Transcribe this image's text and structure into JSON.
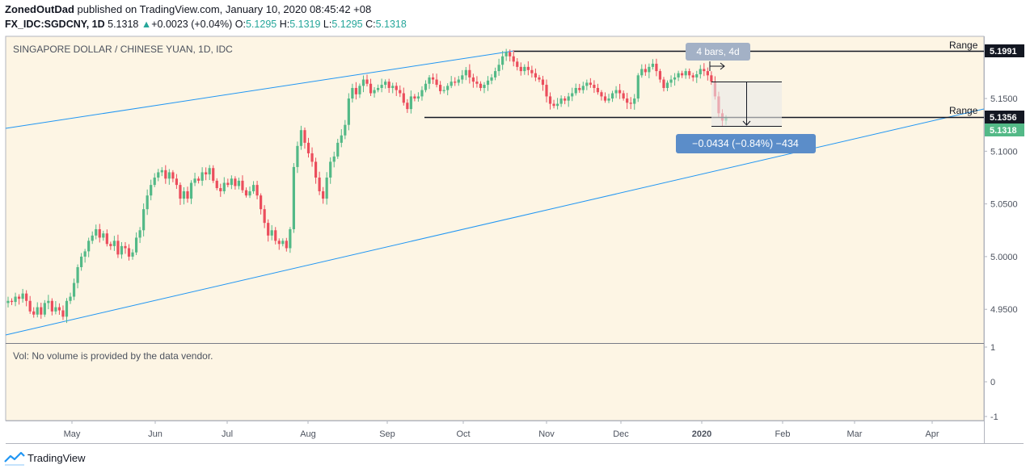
{
  "header": {
    "author": "ZonedOutDad",
    "published": " published on TradingView.com, January 10, 2020 08:45:42 +08",
    "symbol": "FX_IDC:SGDCNY, 1D",
    "last": "5.1318",
    "change_arrow": "▲",
    "change": "+0.0023 (+0.04%)",
    "o_label": "O:",
    "o": "5.1295",
    "h_label": "H:",
    "h": "5.1319",
    "l_label": "L:",
    "l": "5.1295",
    "c_label": "C:",
    "c": "5.1318"
  },
  "panel": {
    "title": "SINGAPORE DOLLAR / CHINESE YUAN, 1D, IDC",
    "volume_note": "Vol: No volume is provided by the data vendor."
  },
  "annotations": {
    "range_label_top": "Range",
    "range_label_bottom": "Range",
    "bars_box": "4 bars, 4d",
    "measure_box": "−0.0434 (−0.84%) −434"
  },
  "price_tags": {
    "range_top": "5.1991",
    "range_bottom": "5.1356",
    "last": "5.1318"
  },
  "footer": {
    "brand": "TradingView"
  },
  "colors": {
    "background": "#fdf5e4",
    "up": "#53b987",
    "down": "#eb4d5c",
    "trendline": "#2196f3",
    "axis_border": "#b2b5be",
    "tag_dark": "#131722",
    "tag_green": "#53b987",
    "measure_blue": "#5b8dc9",
    "bars_gray": "#a3b1c6"
  },
  "chart_data": {
    "type": "candlestick",
    "title": "SINGAPORE DOLLAR / CHINESE YUAN, 1D, IDC",
    "x_ticks": [
      "May",
      "Jun",
      "Jul",
      "Aug",
      "Sep",
      "Oct",
      "Nov",
      "Dec",
      "2020",
      "Feb",
      "Mar",
      "Apr"
    ],
    "y_ticks": [
      "4.9500",
      "5.0000",
      "5.0500",
      "5.1000",
      "5.1500"
    ],
    "volume_ticks": [
      "1",
      "0",
      "-1"
    ],
    "ylim": [
      4.918,
      5.209
    ],
    "closes": [
      4.958,
      4.957,
      4.962,
      4.96,
      4.965,
      4.958,
      4.948,
      4.945,
      4.952,
      4.945,
      4.956,
      4.958,
      4.948,
      4.952,
      4.949,
      4.943,
      4.958,
      4.962,
      4.975,
      4.99,
      5.0,
      5.005,
      5.015,
      5.02,
      5.026,
      5.018,
      5.022,
      5.012,
      5.01,
      5.015,
      5.002,
      5.01,
      5.008,
      5.0,
      5.004,
      5.018,
      5.025,
      5.045,
      5.058,
      5.068,
      5.075,
      5.08,
      5.082,
      5.074,
      5.08,
      5.074,
      5.068,
      5.055,
      5.062,
      5.055,
      5.07,
      5.074,
      5.072,
      5.08,
      5.078,
      5.084,
      5.072,
      5.065,
      5.062,
      5.07,
      5.068,
      5.074,
      5.067,
      5.072,
      5.063,
      5.058,
      5.062,
      5.068,
      5.058,
      5.045,
      5.032,
      5.02,
      5.025,
      5.015,
      5.012,
      5.015,
      5.008,
      5.026,
      5.085,
      5.105,
      5.12,
      5.108,
      5.098,
      5.09,
      5.075,
      5.062,
      5.055,
      5.075,
      5.09,
      5.095,
      5.108,
      5.115,
      5.125,
      5.15,
      5.16,
      5.154,
      5.162,
      5.168,
      5.164,
      5.155,
      5.158,
      5.16,
      5.163,
      5.166,
      5.16,
      5.162,
      5.158,
      5.155,
      5.146,
      5.14,
      5.152,
      5.15,
      5.152,
      5.158,
      5.164,
      5.17,
      5.168,
      5.163,
      5.157,
      5.158,
      5.162,
      5.166,
      5.165,
      5.168,
      5.172,
      5.177,
      5.17,
      5.166,
      5.164,
      5.16,
      5.163,
      5.167,
      5.17,
      5.176,
      5.182,
      5.19,
      5.194,
      5.19,
      5.185,
      5.18,
      5.176,
      5.18,
      5.177,
      5.174,
      5.17,
      5.168,
      5.163,
      5.152,
      5.145,
      5.143,
      5.145,
      5.15,
      5.148,
      5.152,
      5.155,
      5.16,
      5.158,
      5.162,
      5.165,
      5.163,
      5.16,
      5.156,
      5.152,
      5.148,
      5.15,
      5.155,
      5.158,
      5.155,
      5.15,
      5.146,
      5.145,
      5.15,
      5.172,
      5.178,
      5.175,
      5.18,
      5.183,
      5.176,
      5.168,
      5.16,
      5.165,
      5.168,
      5.17,
      5.174,
      5.172,
      5.176,
      5.172,
      5.17,
      5.173,
      5.178,
      5.176,
      5.172,
      5.166,
      5.152,
      5.136,
      5.129,
      5.1318
    ],
    "series_open_first": 4.956
  }
}
